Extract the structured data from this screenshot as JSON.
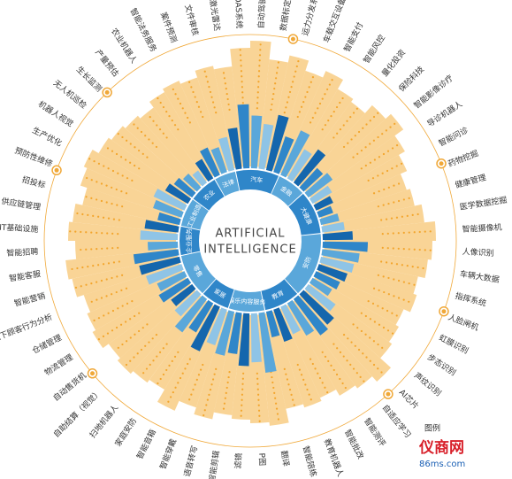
{
  "chart_data": {
    "type": "radial",
    "center_title": [
      "ARTIFICIAL",
      "INTELLIGENCE"
    ],
    "legend_title": "图例",
    "watermark": [
      "仪商网",
      "86ms.com"
    ],
    "colors": {
      "blue": [
        "#1466ad",
        "#2f86c9",
        "#5aa7da",
        "#8fc4e6"
      ],
      "sector": [
        "#2f86c9",
        "#5aa7da"
      ],
      "orange": "#f7c673",
      "ring": "#f0a838"
    },
    "sectors": [
      {
        "name": "汽车",
        "items": [
          {
            "label": "激光雷达",
            "blue": 55,
            "orange": 60
          },
          {
            "label": "ADAS系统",
            "blue": 85,
            "orange": 85
          },
          {
            "label": "自动驾驶算法",
            "blue": 70,
            "orange": 95
          },
          {
            "label": "数据标定",
            "blue": 60,
            "orange": 70
          },
          {
            "label": "运力分发系统",
            "blue": 75,
            "orange": 80
          },
          {
            "label": "车载交互设备",
            "blue": 50,
            "orange": 65
          }
        ]
      },
      {
        "name": "金融",
        "items": [
          {
            "label": "智能支付",
            "blue": 65,
            "orange": 75
          },
          {
            "label": "智能风控",
            "blue": 45,
            "orange": 60
          },
          {
            "label": "量化投资",
            "blue": 55,
            "orange": 55
          },
          {
            "label": "保险科技",
            "blue": 35,
            "orange": 70
          }
        ]
      },
      {
        "name": "大健康",
        "items": [
          {
            "label": "智能影像诊疗",
            "blue": 40,
            "orange": 80
          },
          {
            "label": "导诊机器人",
            "blue": 30,
            "orange": 65
          },
          {
            "label": "智能问诊",
            "blue": 25,
            "orange": 55
          },
          {
            "label": "药物挖掘",
            "blue": 20,
            "orange": 45
          },
          {
            "label": "健康管理",
            "blue": 25,
            "orange": 50
          },
          {
            "label": "医学数据挖掘",
            "blue": 30,
            "orange": 60
          }
        ]
      },
      {
        "name": "安防",
        "items": [
          {
            "label": "智能摄像机",
            "blue": 40,
            "orange": 75
          },
          {
            "label": "人像识别",
            "blue": 60,
            "orange": 70
          },
          {
            "label": "车辆大数据",
            "blue": 50,
            "orange": 65
          },
          {
            "label": "指挥系统",
            "blue": 45,
            "orange": 55
          },
          {
            "label": "人脸闸机",
            "blue": 40,
            "orange": 60
          },
          {
            "label": "虹膜识别",
            "blue": 35,
            "orange": 50
          },
          {
            "label": "步态识别",
            "blue": 30,
            "orange": 55
          },
          {
            "label": "声纹识别",
            "blue": 45,
            "orange": 60
          },
          {
            "label": "AI芯片",
            "blue": 55,
            "orange": 80
          }
        ]
      },
      {
        "name": "教育",
        "items": [
          {
            "label": "自适应学习",
            "blue": 60,
            "orange": 70
          },
          {
            "label": "智能测评",
            "blue": 50,
            "orange": 65
          },
          {
            "label": "智能批改",
            "blue": 40,
            "orange": 55
          },
          {
            "label": "教育机器人",
            "blue": 45,
            "orange": 60
          },
          {
            "label": "智能陪练",
            "blue": 35,
            "orange": 55
          }
        ]
      },
      {
        "name": "娱乐内容服务",
        "items": [
          {
            "label": "翻译",
            "blue": 80,
            "orange": 75
          },
          {
            "label": "P图",
            "blue": 65,
            "orange": 70
          },
          {
            "label": "滤镜",
            "blue": 70,
            "orange": 65
          },
          {
            "label": "智能剪辑",
            "blue": 55,
            "orange": 60
          },
          {
            "label": "语音转写",
            "blue": 60,
            "orange": 70
          }
        ]
      },
      {
        "name": "家居",
        "items": [
          {
            "label": "智能穿戴",
            "blue": 50,
            "orange": 60
          },
          {
            "label": "智能音箱",
            "blue": 65,
            "orange": 75
          },
          {
            "label": "家庭安防",
            "blue": 45,
            "orange": 55
          },
          {
            "label": "扫地机器人",
            "blue": 55,
            "orange": 60
          }
        ]
      },
      {
        "name": "零售",
        "items": [
          {
            "label": "自助结算（视觉）",
            "blue": 40,
            "orange": 65
          },
          {
            "label": "自动售货机",
            "blue": 35,
            "orange": 60
          },
          {
            "label": "物流管理",
            "blue": 45,
            "orange": 70
          },
          {
            "label": "仓储管理",
            "blue": 40,
            "orange": 65
          },
          {
            "label": "线下顾客行为分析",
            "blue": 50,
            "orange": 60
          },
          {
            "label": "智能营销",
            "blue": 55,
            "orange": 70
          }
        ]
      },
      {
        "name": "企业服务",
        "items": [
          {
            "label": "智能客服",
            "blue": 60,
            "orange": 75
          },
          {
            "label": "智能招聘",
            "blue": 40,
            "orange": 60
          },
          {
            "label": "IT基础设施",
            "blue": 50,
            "orange": 70
          },
          {
            "label": "供应链管理",
            "blue": 45,
            "orange": 65
          }
        ]
      },
      {
        "name": "工业制造",
        "items": [
          {
            "label": "招投标",
            "blue": 30,
            "orange": 55
          },
          {
            "label": "预防性维修",
            "blue": 40,
            "orange": 65
          },
          {
            "label": "生产优化",
            "blue": 45,
            "orange": 70
          },
          {
            "label": "机器人视觉",
            "blue": 35,
            "orange": 60
          }
        ]
      },
      {
        "name": "农业",
        "items": [
          {
            "label": "无人机巡检",
            "blue": 30,
            "orange": 55
          },
          {
            "label": "生长监测",
            "blue": 25,
            "orange": 50
          },
          {
            "label": "产量预估",
            "blue": 20,
            "orange": 45
          },
          {
            "label": "农业机器人",
            "blue": 30,
            "orange": 55
          }
        ]
      },
      {
        "name": "法律",
        "items": [
          {
            "label": "智能法务服务",
            "blue": 40,
            "orange": 60
          },
          {
            "label": "案件预测",
            "blue": 35,
            "orange": 55
          },
          {
            "label": "文件审核",
            "blue": 45,
            "orange": 65
          }
        ]
      }
    ]
  }
}
